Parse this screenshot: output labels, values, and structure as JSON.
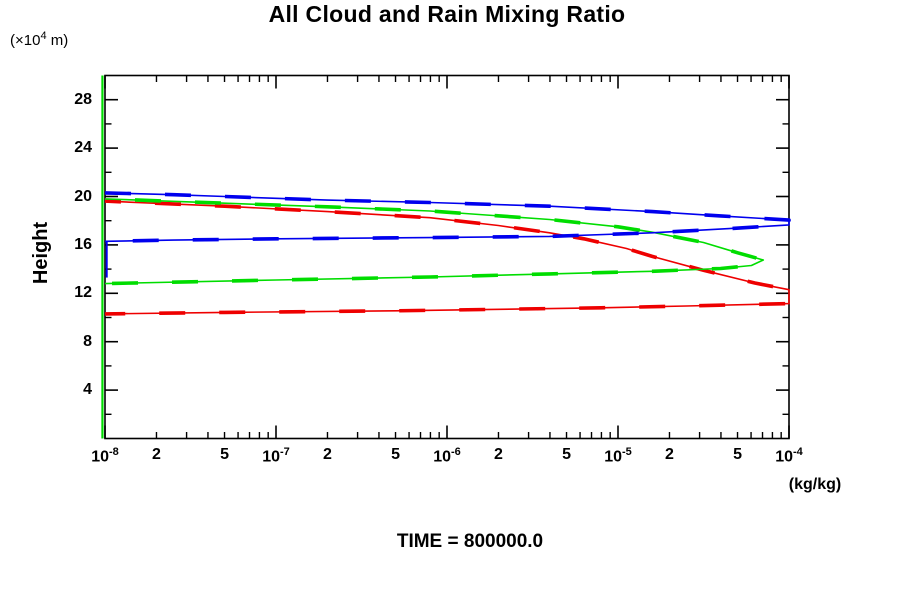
{
  "title": "All Cloud and Rain Mixing Ratio",
  "y_axis": {
    "unit_prefix": "(×10",
    "unit_exponent": "4",
    "unit_suffix": " m)",
    "label": "Height"
  },
  "x_axis": {
    "unit": "(kg/kg)"
  },
  "footer": {
    "time_label": "TIME = 800000.0"
  },
  "colors": {
    "axis": "#000000",
    "background": "#ffffff",
    "blue": "#0000ee",
    "green": "#00dd00",
    "red": "#ee0000"
  },
  "chart_data": {
    "type": "line",
    "title": "All Cloud and Rain Mixing Ratio",
    "xlabel": "(kg/kg)",
    "ylabel": "Height (×10^4 m)",
    "x_scale": "log10",
    "xlim_log10": [
      -8,
      -4
    ],
    "ylim": [
      0,
      30
    ],
    "grid": false,
    "legend_position": "none",
    "box_axes": true,
    "x_ticks": {
      "major": [
        {
          "lv": -8,
          "mantissa": "10",
          "exp": "-8"
        },
        {
          "lv": -7,
          "mantissa": "10",
          "exp": "-7"
        },
        {
          "lv": -6,
          "mantissa": "10",
          "exp": "-6"
        },
        {
          "lv": -5,
          "mantissa": "10",
          "exp": "-5"
        },
        {
          "lv": -4,
          "mantissa": "10",
          "exp": "-4"
        }
      ],
      "labeled_minor": [
        {
          "lv": -7.699,
          "label": "2"
        },
        {
          "lv": -7.301,
          "label": "5"
        },
        {
          "lv": -6.699,
          "label": "2"
        },
        {
          "lv": -6.301,
          "label": "5"
        },
        {
          "lv": -5.699,
          "label": "2"
        },
        {
          "lv": -5.301,
          "label": "5"
        },
        {
          "lv": -4.699,
          "label": "2"
        },
        {
          "lv": -4.301,
          "label": "5"
        }
      ],
      "minor_mantissas": [
        2,
        3,
        4,
        5,
        6,
        7,
        8,
        9
      ]
    },
    "y_ticks": {
      "major": [
        {
          "h": 4,
          "label": "4"
        },
        {
          "h": 8,
          "label": "8"
        },
        {
          "h": 12,
          "label": "12"
        },
        {
          "h": 16,
          "label": "16"
        },
        {
          "h": 20,
          "label": "20"
        },
        {
          "h": 24,
          "label": "24"
        },
        {
          "h": 28,
          "label": "28"
        }
      ],
      "minor": [
        2,
        6,
        10,
        14,
        18,
        22,
        26
      ]
    },
    "series": [
      {
        "name": "rain-mixing-ratio-red",
        "color": "#ee0000",
        "dash_offset": 10,
        "points_log10x_height": [
          [
            -8.0,
            19.62
          ],
          [
            -7.3,
            19.2
          ],
          [
            -6.7,
            18.75
          ],
          [
            -6.1,
            18.25
          ],
          [
            -5.7,
            17.6
          ],
          [
            -5.4,
            17.0
          ],
          [
            -5.2,
            16.5
          ],
          [
            -4.95,
            15.7
          ],
          [
            -4.8,
            15.05
          ],
          [
            -4.5,
            13.9
          ],
          [
            -4.2,
            12.85
          ],
          [
            -4.0,
            12.3
          ],
          [
            -4.0,
            11.15
          ],
          [
            -4.6,
            10.95
          ],
          [
            -5.1,
            10.8
          ],
          [
            -6.3,
            10.55
          ],
          [
            -7.3,
            10.42
          ],
          [
            -8.0,
            10.3
          ]
        ]
      },
      {
        "name": "cloud-mixing-ratio-green",
        "color": "#00dd00",
        "dash_offset": 30,
        "axis_hug_segment": {
          "lv": -8.015,
          "h_from": 0,
          "h_to": 30,
          "width": 2.2
        },
        "points_log10x_height": [
          [
            -8.0,
            19.8
          ],
          [
            -7.3,
            19.45
          ],
          [
            -6.7,
            19.15
          ],
          [
            -6.1,
            18.8
          ],
          [
            -5.4,
            18.1
          ],
          [
            -5.0,
            17.5
          ],
          [
            -4.8,
            17.05
          ],
          [
            -4.5,
            16.2
          ],
          [
            -4.3,
            15.35
          ],
          [
            -4.15,
            14.75
          ],
          [
            -4.22,
            14.3
          ],
          [
            -4.4,
            14.05
          ],
          [
            -4.8,
            13.82
          ],
          [
            -5.4,
            13.6
          ],
          [
            -6.1,
            13.35
          ],
          [
            -7.0,
            13.1
          ],
          [
            -8.0,
            12.8
          ]
        ]
      },
      {
        "name": "cloud-mixing-ratio-blue",
        "color": "#0000ee",
        "dash_offset": 0,
        "axis_hug_segment": {
          "lv": -7.99,
          "h_from": 13.3,
          "h_to": 16.3,
          "width": 2.0
        },
        "points_log10x_height": [
          [
            -8.0,
            20.3
          ],
          [
            -7.6,
            20.15
          ],
          [
            -7.3,
            20.0
          ],
          [
            -6.7,
            19.7
          ],
          [
            -6.1,
            19.5
          ],
          [
            -5.4,
            19.2
          ],
          [
            -4.8,
            18.75
          ],
          [
            -4.4,
            18.4
          ],
          [
            -4.0,
            18.05
          ],
          [
            -4.0,
            17.65
          ],
          [
            -4.35,
            17.35
          ],
          [
            -4.8,
            17.0
          ],
          [
            -5.4,
            16.7
          ],
          [
            -6.1,
            16.6
          ],
          [
            -7.0,
            16.5
          ],
          [
            -7.6,
            16.4
          ],
          [
            -8.0,
            16.3
          ]
        ]
      }
    ]
  }
}
